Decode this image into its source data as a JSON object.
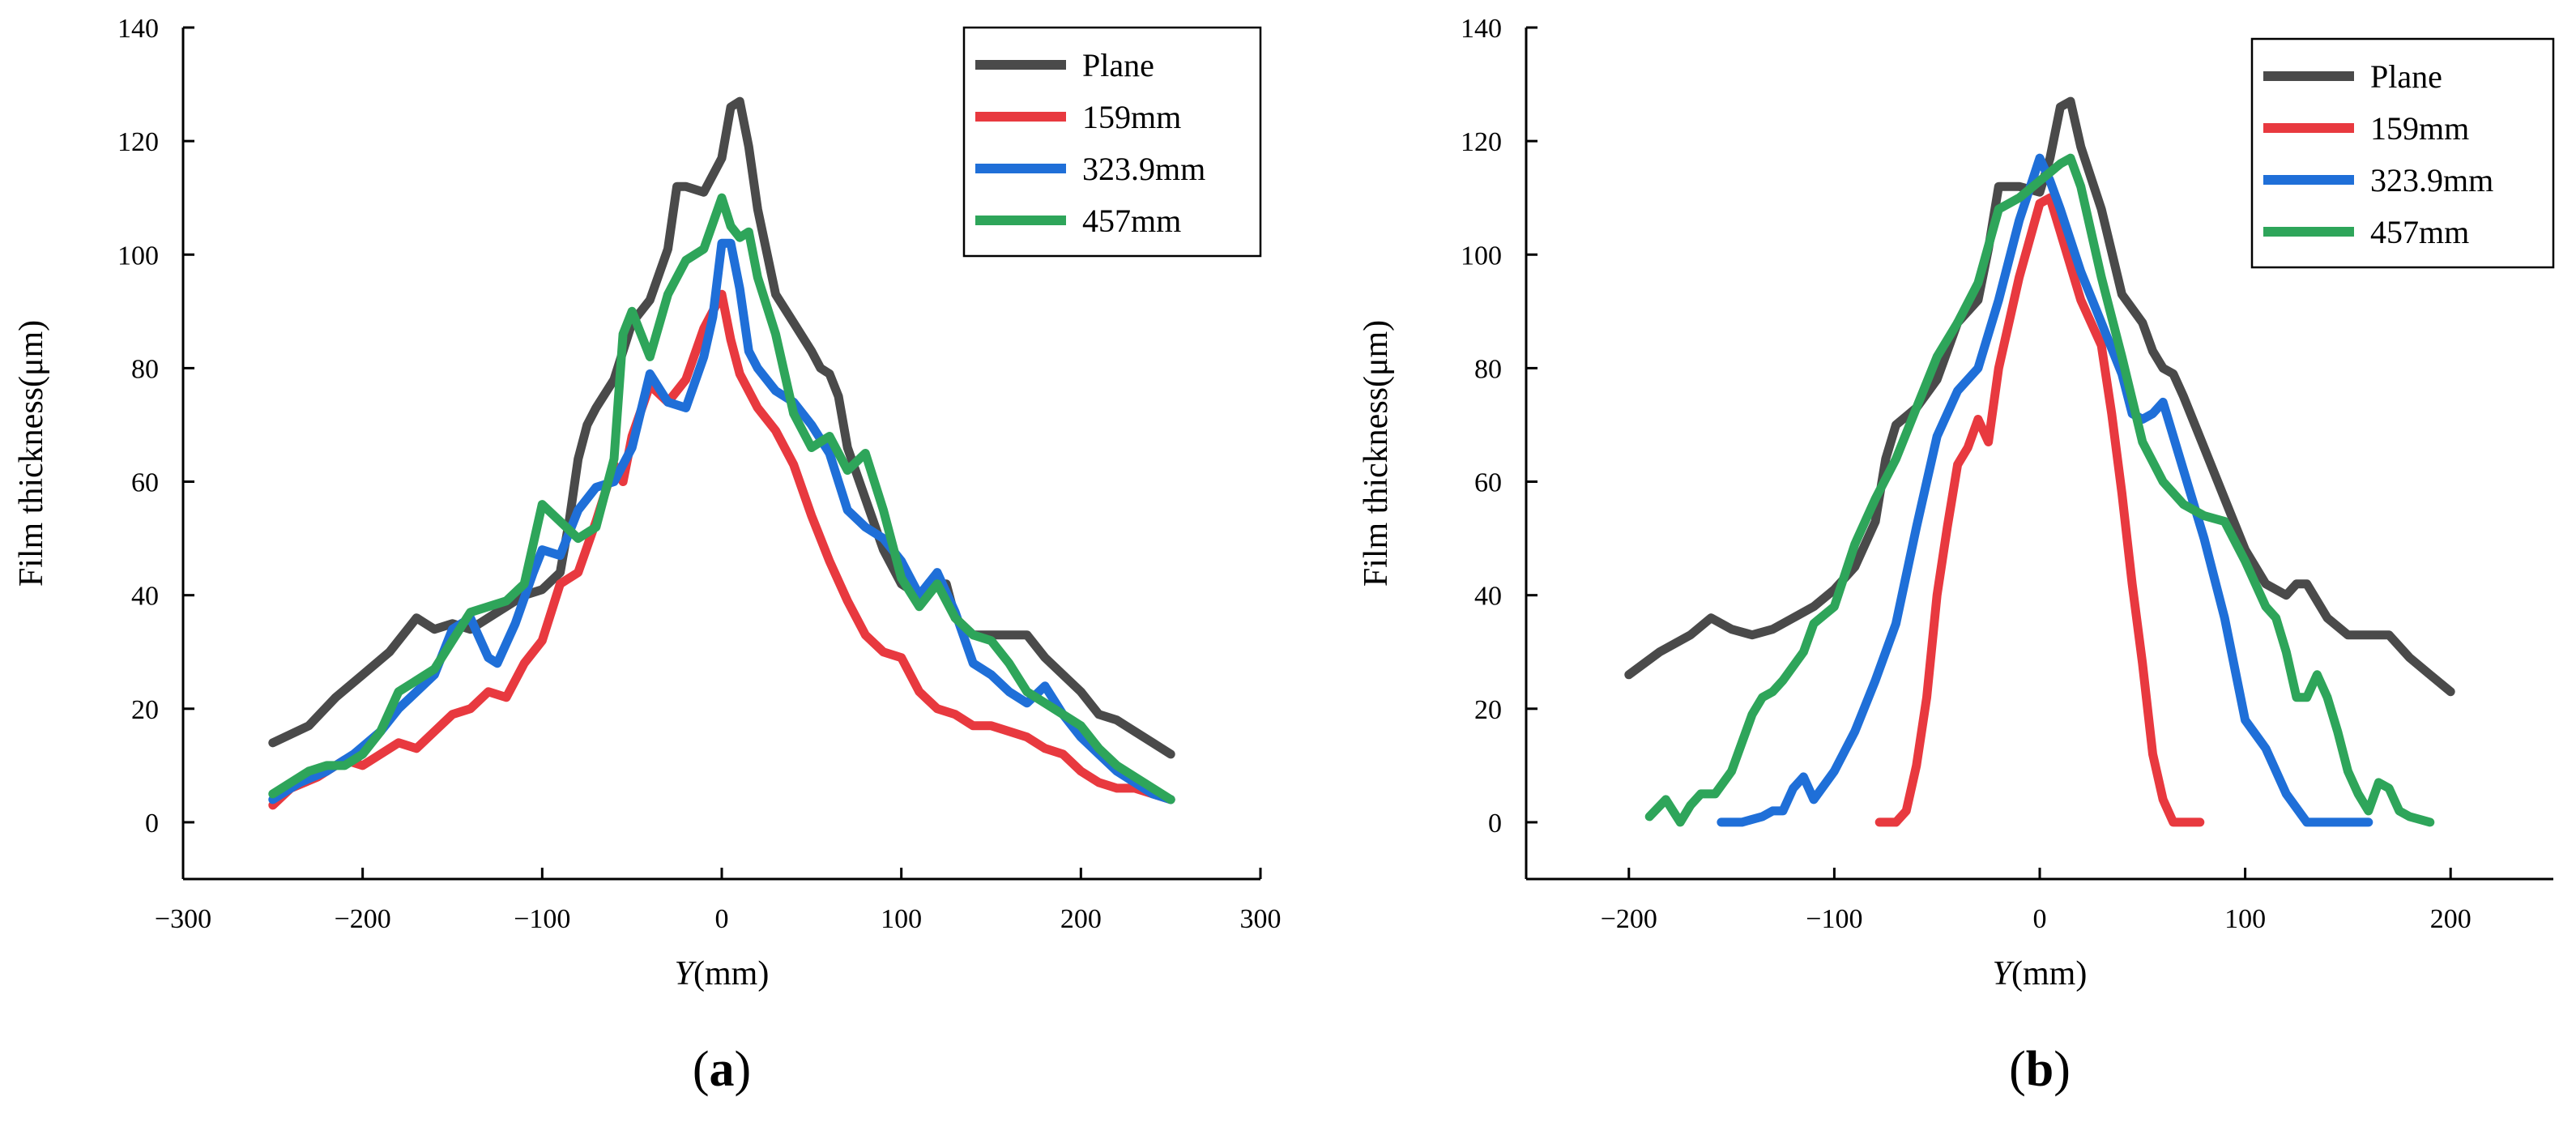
{
  "chart_data": [
    {
      "type": "line",
      "panel_label": "a",
      "xlabel_italic": "Y",
      "xlabel_unit": "(mm)",
      "ylabel": "Film thickness(μm)",
      "xlim": [
        -300,
        300
      ],
      "ylim": [
        -10,
        140
      ],
      "xticks": [
        -300,
        -200,
        -100,
        0,
        100,
        200,
        300
      ],
      "yticks": [
        0,
        20,
        40,
        60,
        80,
        100,
        120,
        140
      ],
      "xtick_labels": [
        "−300",
        "−200",
        "−100",
        "0",
        "100",
        "200",
        "300"
      ],
      "ytick_labels": [
        "0",
        "20",
        "40",
        "60",
        "80",
        "100",
        "120",
        "140"
      ],
      "legend_position": "top-right",
      "series": [
        {
          "name": "Plane",
          "color": "#4a4a4a",
          "x": [
            -250,
            -230,
            -215,
            -200,
            -185,
            -170,
            -160,
            -150,
            -140,
            -130,
            -120,
            -110,
            -100,
            -90,
            -85,
            -80,
            -75,
            -70,
            -60,
            -50,
            -40,
            -30,
            -25,
            -20,
            -10,
            0,
            5,
            10,
            15,
            20,
            30,
            40,
            50,
            55,
            60,
            65,
            70,
            80,
            90,
            100,
            110,
            120,
            125,
            130,
            140,
            150,
            160,
            170,
            180,
            190,
            200,
            210,
            220,
            230,
            240,
            250
          ],
          "y": [
            14,
            17,
            22,
            26,
            30,
            36,
            34,
            35,
            34,
            36,
            38,
            40,
            41,
            44,
            53,
            64,
            70,
            73,
            78,
            88,
            92,
            101,
            112,
            112,
            111,
            117,
            126,
            127,
            119,
            108,
            93,
            88,
            83,
            80,
            79,
            75,
            66,
            57,
            48,
            42,
            40,
            42,
            42,
            36,
            33,
            33,
            33,
            33,
            29,
            26,
            23,
            19,
            18,
            16,
            14,
            12
          ]
        },
        {
          "name": "159mm",
          "color": "#e8393f",
          "x": [
            -250,
            -240,
            -225,
            -210,
            -200,
            -190,
            -180,
            -170,
            -160,
            -150,
            -140,
            -130,
            -120,
            -110,
            -100,
            -90,
            -80,
            -70,
            -60,
            -55,
            -50,
            -40,
            -30,
            -20,
            -10,
            0,
            5,
            10,
            20,
            30,
            40,
            50,
            60,
            70,
            80,
            90,
            100,
            110,
            120,
            130,
            140,
            150,
            160,
            170,
            180,
            190,
            200,
            210,
            220,
            230,
            240,
            250
          ],
          "y": [
            3,
            6,
            8,
            11,
            10,
            12,
            14,
            13,
            16,
            19,
            20,
            23,
            22,
            28,
            32,
            42,
            44,
            53,
            63,
            60,
            68,
            77,
            74,
            78,
            87,
            93,
            85,
            79,
            73,
            69,
            63,
            54,
            46,
            39,
            33,
            30,
            29,
            23,
            20,
            19,
            17,
            17,
            16,
            15,
            13,
            12,
            9,
            7,
            6,
            6,
            5,
            4
          ]
        },
        {
          "name": "323.9mm",
          "color": "#1f6fd8",
          "x": [
            -250,
            -235,
            -220,
            -205,
            -190,
            -180,
            -170,
            -160,
            -150,
            -140,
            -130,
            -125,
            -115,
            -105,
            -100,
            -90,
            -80,
            -70,
            -60,
            -50,
            -40,
            -30,
            -20,
            -10,
            -5,
            0,
            5,
            10,
            15,
            20,
            30,
            40,
            50,
            60,
            70,
            80,
            90,
            100,
            110,
            120,
            130,
            140,
            150,
            160,
            170,
            180,
            190,
            200,
            210,
            220,
            230,
            240,
            250
          ],
          "y": [
            4,
            7,
            9,
            12,
            16,
            20,
            23,
            26,
            34,
            36,
            29,
            28,
            35,
            44,
            48,
            47,
            55,
            59,
            60,
            66,
            79,
            74,
            73,
            82,
            89,
            102,
            102,
            94,
            83,
            80,
            76,
            74,
            70,
            65,
            55,
            52,
            50,
            46,
            40,
            44,
            37,
            28,
            26,
            23,
            21,
            24,
            19,
            15,
            12,
            9,
            7,
            5,
            4
          ]
        },
        {
          "name": "457mm",
          "color": "#2ea55a",
          "x": [
            -250,
            -240,
            -230,
            -220,
            -210,
            -200,
            -190,
            -180,
            -170,
            -160,
            -150,
            -140,
            -130,
            -120,
            -110,
            -100,
            -90,
            -80,
            -70,
            -60,
            -55,
            -50,
            -40,
            -30,
            -20,
            -10,
            0,
            5,
            10,
            15,
            20,
            30,
            40,
            50,
            60,
            70,
            80,
            90,
            100,
            110,
            120,
            130,
            140,
            150,
            160,
            170,
            180,
            190,
            200,
            210,
            220,
            230,
            240,
            250
          ],
          "y": [
            5,
            7,
            9,
            10,
            10,
            12,
            16,
            23,
            25,
            27,
            32,
            37,
            38,
            39,
            42,
            56,
            53,
            50,
            52,
            64,
            86,
            90,
            82,
            93,
            99,
            101,
            110,
            105,
            103,
            104,
            96,
            86,
            72,
            66,
            68,
            62,
            65,
            55,
            43,
            38,
            42,
            36,
            33,
            32,
            28,
            23,
            21,
            19,
            17,
            13,
            10,
            8,
            6,
            4
          ]
        }
      ]
    },
    {
      "type": "line",
      "panel_label": "b",
      "xlabel_italic": "Y",
      "xlabel_unit": "(mm)",
      "ylabel": "Film thickness(μm)",
      "xlim": [
        -250,
        250
      ],
      "ylim": [
        -10,
        140
      ],
      "xticks": [
        -200,
        -100,
        0,
        100,
        200
      ],
      "yticks": [
        0,
        20,
        40,
        60,
        80,
        100,
        120,
        140
      ],
      "xtick_labels": [
        "−200",
        "−100",
        "0",
        "100",
        "200"
      ],
      "ytick_labels": [
        "0",
        "20",
        "40",
        "60",
        "80",
        "100",
        "120",
        "140"
      ],
      "legend_position": "top-right",
      "series": [
        {
          "name": "Plane",
          "color": "#4a4a4a",
          "x": [
            -200,
            -185,
            -170,
            -160,
            -150,
            -140,
            -130,
            -120,
            -110,
            -100,
            -90,
            -80,
            -75,
            -70,
            -60,
            -50,
            -40,
            -30,
            -25,
            -20,
            -10,
            0,
            5,
            10,
            15,
            20,
            30,
            40,
            50,
            55,
            60,
            65,
            70,
            80,
            90,
            100,
            110,
            120,
            125,
            130,
            140,
            150,
            160,
            170,
            180,
            190,
            200
          ],
          "y": [
            26,
            30,
            33,
            36,
            34,
            33,
            34,
            36,
            38,
            41,
            45,
            53,
            64,
            70,
            73,
            78,
            88,
            92,
            101,
            112,
            112,
            111,
            117,
            126,
            127,
            119,
            108,
            93,
            88,
            83,
            80,
            79,
            75,
            66,
            57,
            48,
            42,
            40,
            42,
            42,
            36,
            33,
            33,
            33,
            29,
            26,
            23
          ]
        },
        {
          "name": "159mm",
          "color": "#e8393f",
          "x": [
            -78,
            -70,
            -65,
            -60,
            -55,
            -50,
            -45,
            -40,
            -35,
            -30,
            -25,
            -20,
            -10,
            0,
            5,
            10,
            20,
            25,
            30,
            35,
            40,
            45,
            50,
            55,
            60,
            65,
            70,
            78
          ],
          "y": [
            0,
            0,
            2,
            10,
            22,
            40,
            52,
            63,
            66,
            71,
            67,
            80,
            96,
            109,
            110,
            104,
            92,
            88,
            84,
            72,
            58,
            42,
            28,
            12,
            4,
            0,
            0,
            0
          ]
        },
        {
          "name": "323.9mm",
          "color": "#1f6fd8",
          "x": [
            -155,
            -145,
            -135,
            -130,
            -125,
            -120,
            -115,
            -110,
            -100,
            -90,
            -80,
            -70,
            -60,
            -50,
            -40,
            -30,
            -20,
            -10,
            0,
            5,
            10,
            20,
            30,
            40,
            45,
            50,
            55,
            60,
            70,
            80,
            90,
            100,
            110,
            120,
            130,
            140,
            150,
            160
          ],
          "y": [
            0,
            0,
            1,
            2,
            2,
            6,
            8,
            4,
            9,
            16,
            25,
            35,
            52,
            68,
            76,
            80,
            92,
            106,
            117,
            113,
            108,
            97,
            88,
            79,
            72,
            71,
            72,
            74,
            62,
            50,
            36,
            18,
            13,
            5,
            0,
            0,
            0,
            0
          ]
        },
        {
          "name": "457mm",
          "color": "#2ea55a",
          "x": [
            -190,
            -182,
            -175,
            -170,
            -165,
            -158,
            -150,
            -145,
            -140,
            -135,
            -130,
            -125,
            -115,
            -110,
            -100,
            -90,
            -80,
            -70,
            -60,
            -50,
            -40,
            -30,
            -20,
            -10,
            0,
            10,
            15,
            20,
            30,
            40,
            50,
            60,
            70,
            80,
            90,
            100,
            110,
            115,
            120,
            125,
            130,
            135,
            140,
            145,
            150,
            155,
            160,
            165,
            170,
            175,
            180,
            190
          ],
          "y": [
            1,
            4,
            0,
            3,
            5,
            5,
            9,
            14,
            19,
            22,
            23,
            25,
            30,
            35,
            38,
            49,
            57,
            64,
            73,
            82,
            88,
            95,
            108,
            110,
            113,
            116,
            117,
            112,
            96,
            82,
            67,
            60,
            56,
            54,
            53,
            46,
            38,
            36,
            30,
            22,
            22,
            26,
            22,
            16,
            9,
            5,
            2,
            7,
            6,
            2,
            1,
            0
          ]
        }
      ]
    }
  ]
}
